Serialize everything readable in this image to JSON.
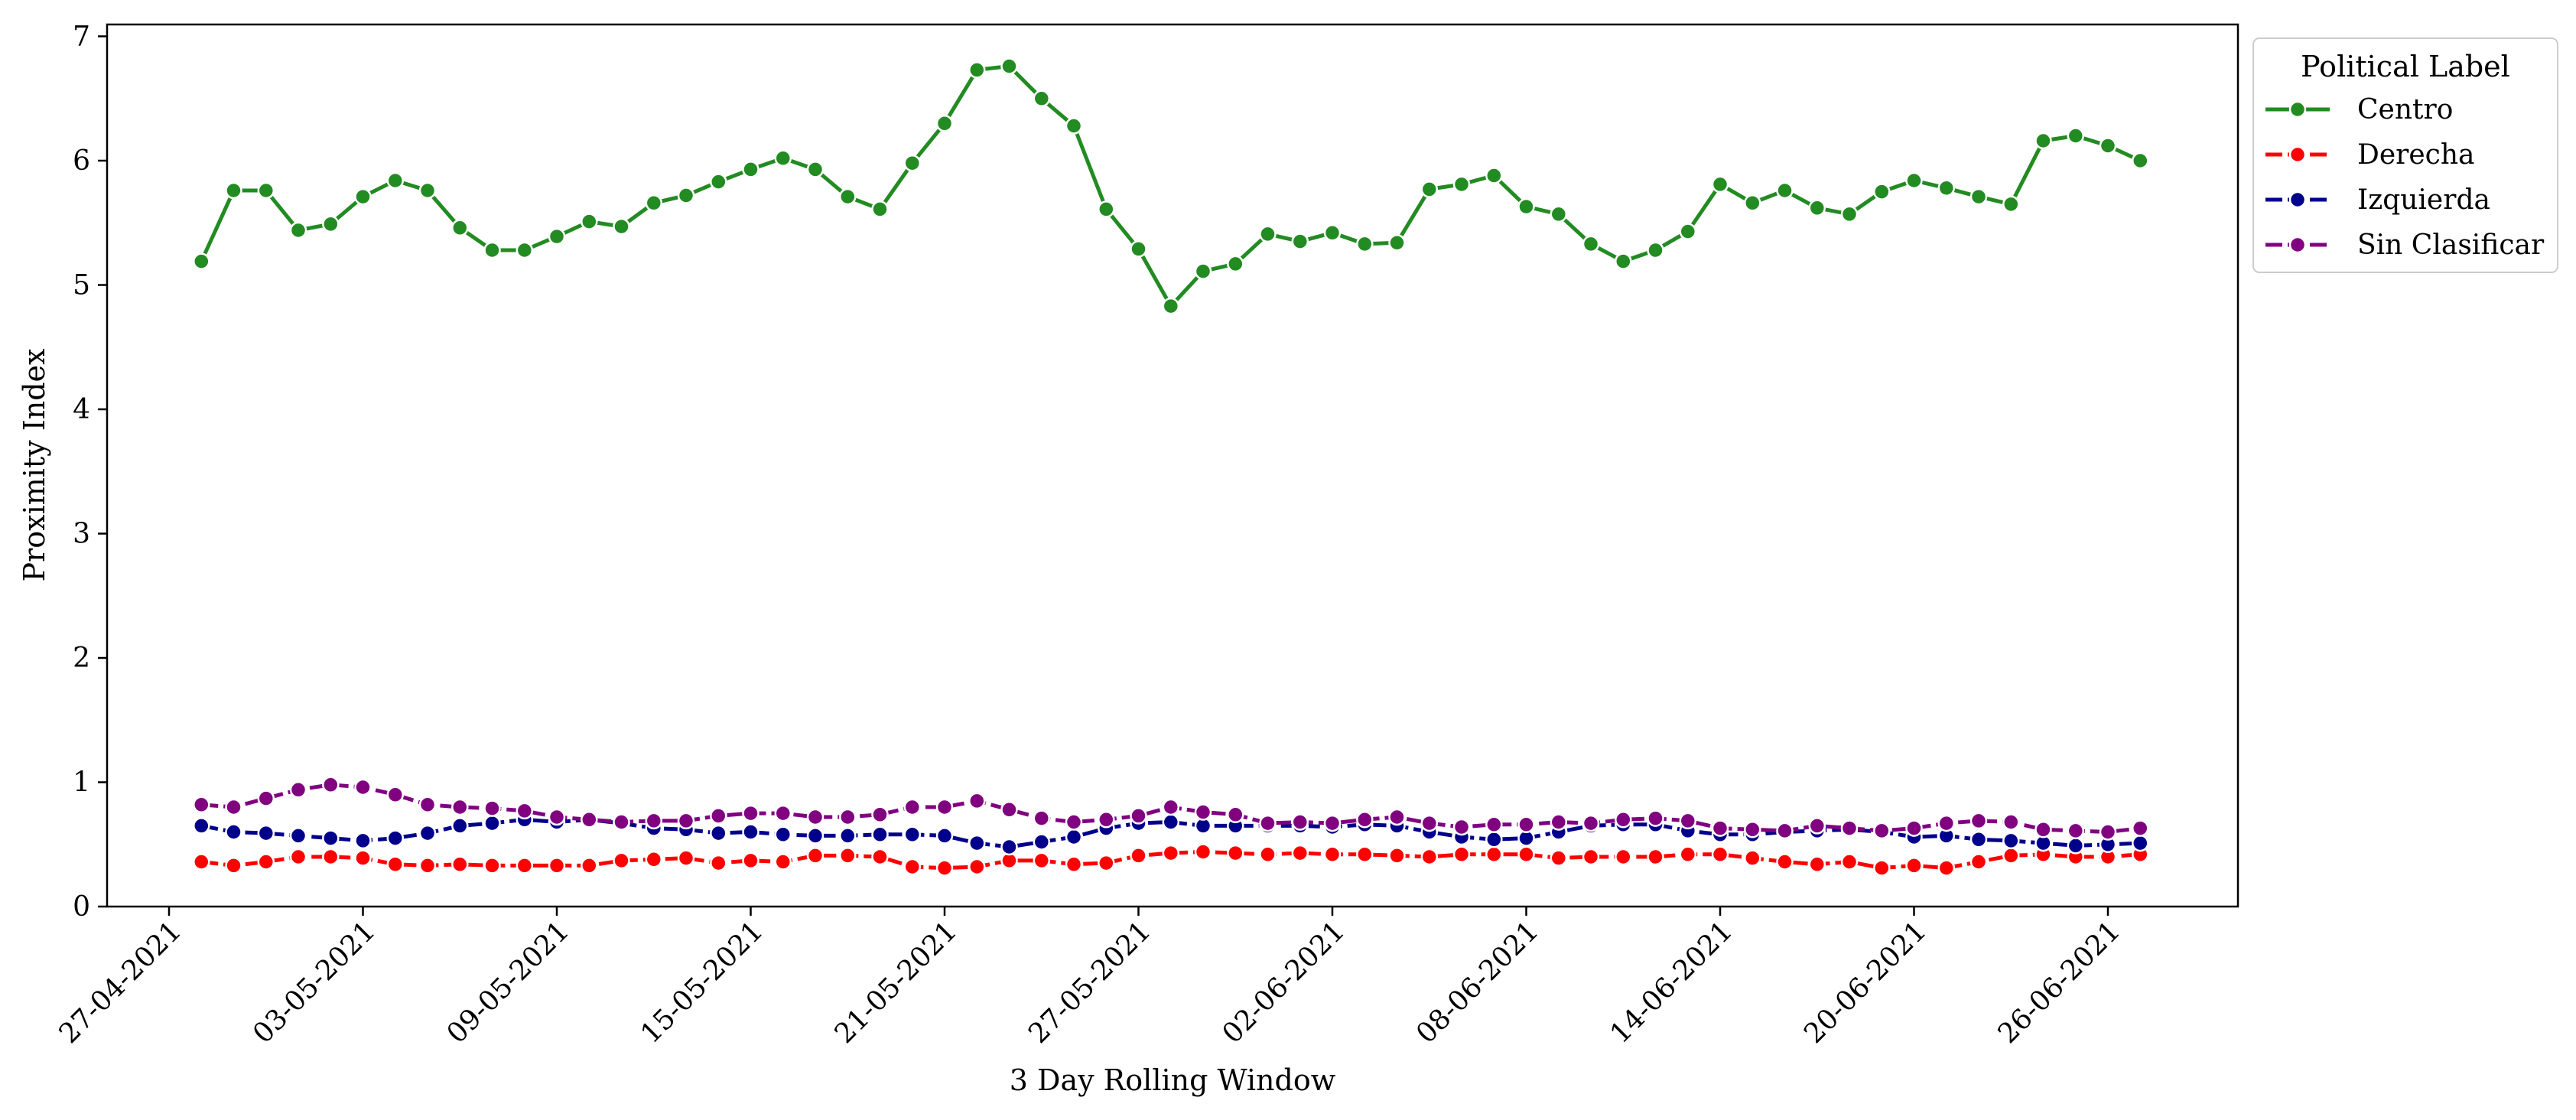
{
  "chart_data": {
    "type": "line",
    "xlabel": "3 Day Rolling Window",
    "ylabel": "Proximity Index",
    "ylim": [
      0,
      7
    ],
    "yticks": [
      "0",
      "1",
      "2",
      "3",
      "4",
      "5",
      "6",
      "7"
    ],
    "x_tick_labels": [
      "27-04-2021",
      "03-05-2021",
      "09-05-2021",
      "15-05-2021",
      "21-05-2021",
      "27-05-2021",
      "02-06-2021",
      "08-06-2021",
      "14-06-2021",
      "20-06-2021",
      "26-06-2021"
    ],
    "x_start_date": "28-04-2021",
    "x_end_date": "27-06-2021",
    "grid": false,
    "legend": {
      "title": "Political Label",
      "placement": "outside-top-right"
    },
    "series": [
      {
        "name": "Centro",
        "color": "#228B22",
        "values": [
          5.19,
          5.76,
          5.76,
          5.44,
          5.49,
          5.71,
          5.84,
          5.76,
          5.46,
          5.28,
          5.28,
          5.39,
          5.51,
          5.47,
          5.66,
          5.72,
          5.83,
          5.93,
          6.02,
          5.93,
          5.71,
          5.61,
          5.98,
          6.3,
          6.73,
          6.76,
          6.5,
          6.28,
          5.61,
          5.29,
          4.83,
          5.11,
          5.17,
          5.41,
          5.35,
          5.42,
          5.33,
          5.34,
          5.77,
          5.81,
          5.88,
          5.63,
          5.57,
          5.33,
          5.19,
          5.28,
          5.43,
          5.81,
          5.66,
          5.76,
          5.62,
          5.57,
          5.75,
          5.84,
          5.78,
          5.71,
          5.65,
          6.16,
          6.2,
          6.12,
          6.0
        ]
      },
      {
        "name": "Derecha",
        "color": "#FF0000",
        "values": [
          0.36,
          0.33,
          0.36,
          0.4,
          0.4,
          0.39,
          0.34,
          0.33,
          0.34,
          0.33,
          0.33,
          0.33,
          0.33,
          0.37,
          0.38,
          0.39,
          0.35,
          0.37,
          0.36,
          0.41,
          0.41,
          0.4,
          0.32,
          0.31,
          0.32,
          0.37,
          0.37,
          0.34,
          0.35,
          0.41,
          0.43,
          0.44,
          0.43,
          0.42,
          0.43,
          0.42,
          0.42,
          0.41,
          0.4,
          0.42,
          0.42,
          0.42,
          0.39,
          0.4,
          0.4,
          0.4,
          0.42,
          0.42,
          0.39,
          0.36,
          0.34,
          0.36,
          0.31,
          0.33,
          0.31,
          0.36,
          0.41,
          0.42,
          0.4,
          0.4,
          0.42
        ]
      },
      {
        "name": "Izquierda",
        "color": "#00008B",
        "values": [
          0.65,
          0.6,
          0.59,
          0.57,
          0.55,
          0.53,
          0.55,
          0.59,
          0.65,
          0.67,
          0.7,
          0.68,
          0.7,
          0.67,
          0.63,
          0.62,
          0.59,
          0.6,
          0.58,
          0.57,
          0.57,
          0.58,
          0.58,
          0.57,
          0.51,
          0.48,
          0.52,
          0.56,
          0.63,
          0.67,
          0.68,
          0.65,
          0.65,
          0.65,
          0.65,
          0.64,
          0.66,
          0.65,
          0.6,
          0.56,
          0.54,
          0.55,
          0.6,
          0.65,
          0.66,
          0.66,
          0.61,
          0.58,
          0.58,
          0.6,
          0.61,
          0.62,
          0.6,
          0.56,
          0.57,
          0.54,
          0.53,
          0.51,
          0.49,
          0.5,
          0.51
        ]
      },
      {
        "name": "Sin Clasificar",
        "color": "#800080",
        "values": [
          0.82,
          0.8,
          0.87,
          0.94,
          0.98,
          0.96,
          0.9,
          0.82,
          0.8,
          0.79,
          0.77,
          0.72,
          0.7,
          0.68,
          0.69,
          0.69,
          0.73,
          0.75,
          0.75,
          0.72,
          0.72,
          0.74,
          0.8,
          0.8,
          0.85,
          0.78,
          0.71,
          0.68,
          0.7,
          0.73,
          0.8,
          0.76,
          0.74,
          0.67,
          0.68,
          0.67,
          0.7,
          0.72,
          0.67,
          0.64,
          0.66,
          0.66,
          0.68,
          0.67,
          0.7,
          0.71,
          0.69,
          0.63,
          0.62,
          0.61,
          0.65,
          0.63,
          0.61,
          0.63,
          0.67,
          0.69,
          0.68,
          0.62,
          0.61,
          0.6,
          0.63
        ]
      }
    ]
  }
}
